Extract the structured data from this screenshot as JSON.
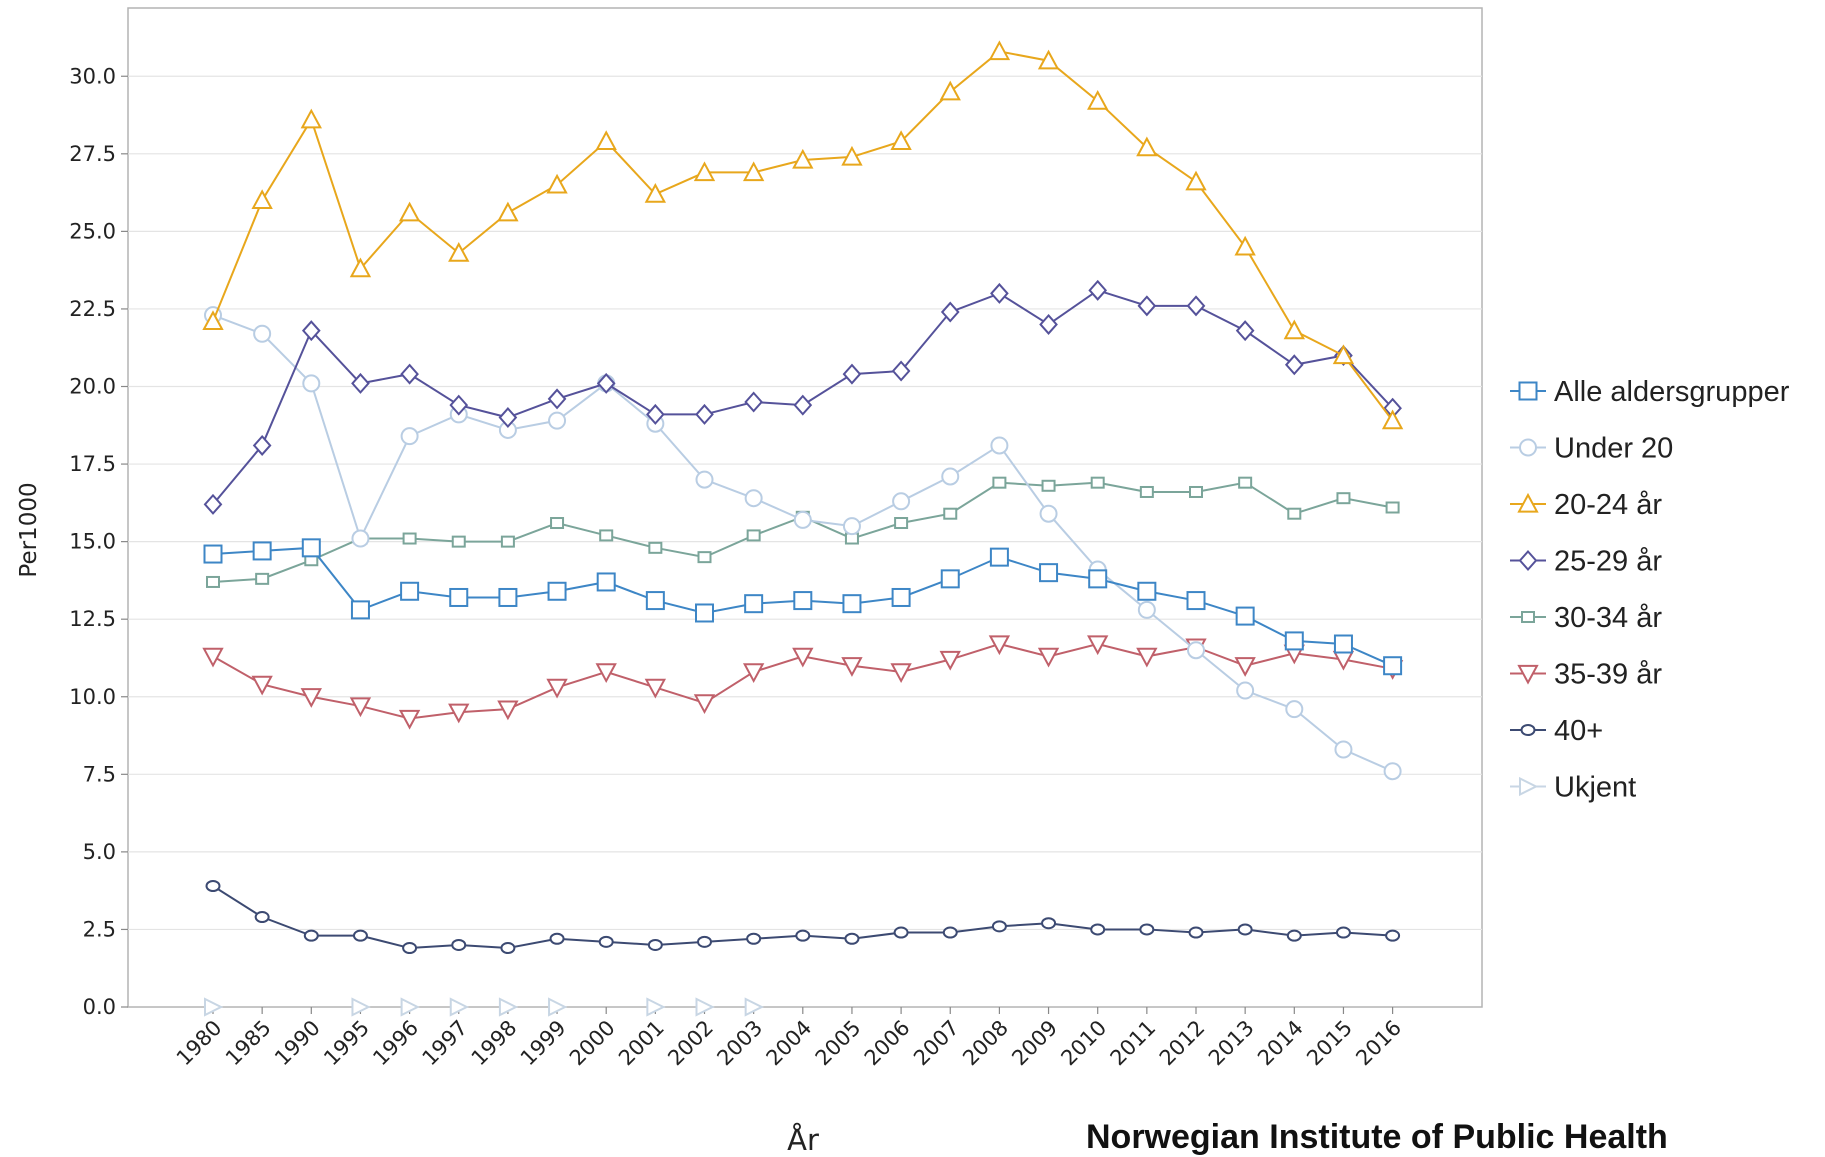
{
  "credit": "Norwegian Institute of Public Health",
  "chart_data": {
    "type": "line",
    "title": "",
    "xlabel": "År",
    "ylabel": "Per1000",
    "ylim": [
      0,
      32.2
    ],
    "yticks": [
      "0.0",
      "2.5",
      "5.0",
      "7.5",
      "10.0",
      "12.5",
      "15.0",
      "17.5",
      "20.0",
      "22.5",
      "25.0",
      "27.5",
      "30.0"
    ],
    "grid": "horizontal",
    "legend_position": "right",
    "categories": [
      "1980",
      "1985",
      "1990",
      "1995",
      "1996",
      "1997",
      "1998",
      "1999",
      "2000",
      "2001",
      "2002",
      "2003",
      "2004",
      "2005",
      "2006",
      "2007",
      "2008",
      "2009",
      "2010",
      "2011",
      "2012",
      "2013",
      "2014",
      "2015",
      "2016"
    ],
    "series": [
      {
        "name": "Alle aldersgrupper",
        "color": "#3d86c6",
        "marker": "square",
        "values": [
          14.6,
          14.7,
          14.8,
          12.8,
          13.4,
          13.2,
          13.2,
          13.4,
          13.7,
          13.1,
          12.7,
          13.0,
          13.1,
          13.0,
          13.2,
          13.8,
          14.5,
          14.0,
          13.8,
          13.4,
          13.1,
          12.6,
          11.8,
          11.7,
          11.0
        ]
      },
      {
        "name": "Under 20",
        "color": "#b9cde3",
        "marker": "circle",
        "values": [
          22.3,
          21.7,
          20.1,
          15.1,
          18.4,
          19.1,
          18.6,
          18.9,
          20.1,
          18.8,
          17.0,
          16.4,
          15.7,
          15.5,
          16.3,
          17.1,
          18.1,
          15.9,
          14.1,
          12.8,
          11.5,
          10.2,
          9.6,
          8.3,
          7.6
        ]
      },
      {
        "name": "20-24 år",
        "color": "#e8a71c",
        "marker": "triangle-up",
        "values": [
          22.1,
          26.0,
          28.6,
          23.8,
          25.6,
          24.3,
          25.6,
          26.5,
          27.9,
          26.2,
          26.9,
          26.9,
          27.3,
          27.4,
          27.9,
          29.5,
          30.8,
          30.5,
          29.2,
          27.7,
          26.6,
          24.5,
          21.8,
          21.0,
          18.9
        ]
      },
      {
        "name": "25-29 år",
        "color": "#55529a",
        "marker": "diamond",
        "values": [
          16.2,
          18.1,
          21.8,
          20.1,
          20.4,
          19.4,
          19.0,
          19.6,
          20.1,
          19.1,
          19.1,
          19.5,
          19.4,
          20.4,
          20.5,
          22.4,
          23.0,
          22.0,
          23.1,
          22.6,
          22.6,
          21.8,
          20.7,
          21.0,
          19.3
        ]
      },
      {
        "name": "30-34 år",
        "color": "#7ba59a",
        "marker": "small-square",
        "values": [
          13.7,
          13.8,
          14.4,
          15.1,
          15.1,
          15.0,
          15.0,
          15.6,
          15.2,
          14.8,
          14.5,
          15.2,
          15.8,
          15.1,
          15.6,
          15.9,
          16.9,
          16.8,
          16.9,
          16.6,
          16.6,
          16.9,
          15.9,
          16.4,
          16.1
        ]
      },
      {
        "name": "35-39 år",
        "color": "#c0606a",
        "marker": "triangle-down",
        "values": [
          11.3,
          10.4,
          10.0,
          9.7,
          9.3,
          9.5,
          9.6,
          10.3,
          10.8,
          10.3,
          9.8,
          10.8,
          11.3,
          11.0,
          10.8,
          11.2,
          11.7,
          11.3,
          11.7,
          11.3,
          11.6,
          11.0,
          11.4,
          11.2,
          10.9
        ]
      },
      {
        "name": "40+",
        "color": "#3c4a72",
        "marker": "small-circle",
        "values": [
          3.9,
          2.9,
          2.3,
          2.3,
          1.9,
          2.0,
          1.9,
          2.2,
          2.1,
          2.0,
          2.1,
          2.2,
          2.3,
          2.2,
          2.4,
          2.4,
          2.6,
          2.7,
          2.5,
          2.5,
          2.4,
          2.5,
          2.3,
          2.4,
          2.3
        ]
      },
      {
        "name": "Ukjent",
        "color": "#c8d6e4",
        "marker": "triangle-right",
        "values": [
          0.0,
          null,
          null,
          0.0,
          0.0,
          0.0,
          0.0,
          0.0,
          null,
          0.0,
          0.0,
          0.0,
          null,
          null,
          null,
          null,
          null,
          null,
          null,
          null,
          null,
          null,
          null,
          null,
          null
        ]
      }
    ]
  }
}
